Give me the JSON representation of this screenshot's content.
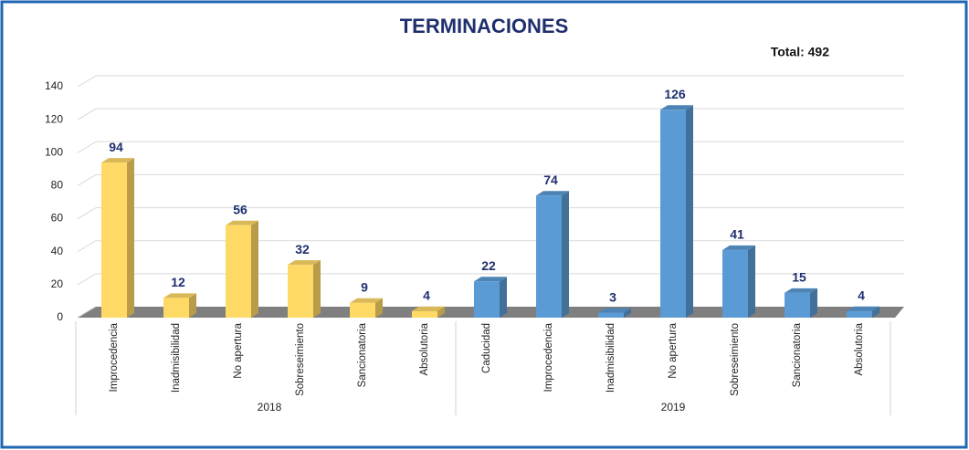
{
  "chart_data": {
    "type": "bar",
    "title": "TERMINACIONES",
    "annotation": "Total: 492",
    "groups": [
      {
        "name": "2018",
        "color": "#ffd966",
        "categories": [
          "Improcedencia",
          "Inadmisibilidad",
          "No apertura",
          "Sobreseimiento",
          "Sancionatoria",
          "Absolutoria"
        ],
        "values": [
          94,
          12,
          56,
          32,
          9,
          4
        ]
      },
      {
        "name": "2019",
        "color": "#5b9bd5",
        "categories": [
          "Caducidad",
          "Improcedencia",
          "Inadmisibilidad",
          "No apertura",
          "Sobreseimiento",
          "Sancionatoria",
          "Absolutoria"
        ],
        "values": [
          22,
          74,
          3,
          126,
          41,
          15,
          4
        ]
      }
    ],
    "ylim": [
      0,
      140
    ],
    "yticks": [
      0,
      20,
      40,
      60,
      80,
      100,
      120,
      140
    ],
    "grid": true
  }
}
